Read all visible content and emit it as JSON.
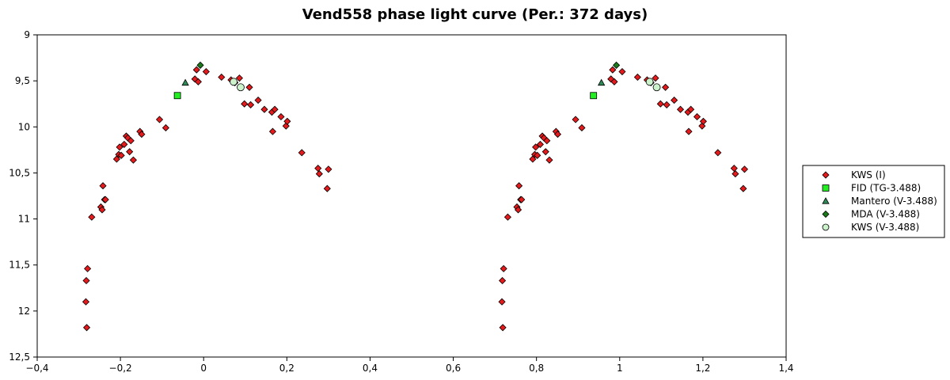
{
  "chart_data": {
    "type": "scatter",
    "title": "Vend558 phase light curve (Per.: 372 days)",
    "xlabel": "",
    "ylabel": "",
    "xlim": [
      -0.4,
      1.4
    ],
    "ylim": [
      12.5,
      9
    ],
    "y_inverted": true,
    "grid": false,
    "legend_position": "right",
    "x_ticks": [
      -0.4,
      -0.2,
      0,
      0.2,
      0.4,
      0.6,
      0.8,
      1,
      1.2,
      1.4
    ],
    "x_tick_labels": [
      "−0,4",
      "−0,2",
      "0",
      "0,2",
      "0,4",
      "0,6",
      "0,8",
      "1",
      "1,2",
      "1,4"
    ],
    "y_ticks": [
      9,
      9.5,
      10,
      10.5,
      11,
      11.5,
      12,
      12.5
    ],
    "y_tick_labels": [
      "9",
      "9,5",
      "10",
      "10,5",
      "11",
      "11,5",
      "12",
      "12,5"
    ],
    "series": [
      {
        "name": "KWS (I)",
        "marker": "diamond",
        "color": "#e41a1c",
        "x": [
          -0.283,
          -0.282,
          -0.281,
          -0.279,
          -0.269,
          -0.247,
          -0.244,
          -0.242,
          -0.238,
          -0.236,
          -0.209,
          -0.204,
          -0.202,
          -0.198,
          -0.191,
          -0.186,
          -0.182,
          -0.178,
          -0.175,
          -0.169,
          -0.153,
          -0.149,
          -0.106,
          -0.091,
          -0.021,
          -0.017,
          -0.013,
          0.006,
          0.043,
          0.066,
          0.075,
          0.086,
          0.098,
          0.11,
          0.113,
          0.131,
          0.146,
          0.164,
          0.166,
          0.171,
          0.186,
          0.198,
          0.201,
          0.236,
          0.275,
          0.278,
          0.297,
          0.3,
          0.717,
          0.718,
          0.719,
          0.721,
          0.731,
          0.753,
          0.756,
          0.758,
          0.762,
          0.764,
          0.791,
          0.796,
          0.798,
          0.802,
          0.809,
          0.814,
          0.818,
          0.822,
          0.825,
          0.831,
          0.847,
          0.851,
          0.894,
          0.909,
          0.979,
          0.983,
          0.987,
          1.006,
          1.043,
          1.066,
          1.075,
          1.086,
          1.098,
          1.11,
          1.113,
          1.131,
          1.146,
          1.164,
          1.166,
          1.171,
          1.186,
          1.198,
          1.201,
          1.236,
          1.275,
          1.278,
          1.297,
          1.3
        ],
        "y": [
          11.9,
          11.67,
          12.18,
          11.54,
          10.98,
          10.87,
          10.9,
          10.64,
          10.79,
          10.79,
          10.35,
          10.3,
          10.22,
          10.31,
          10.19,
          10.1,
          10.12,
          10.27,
          10.15,
          10.36,
          10.05,
          10.08,
          9.92,
          10.01,
          9.48,
          9.38,
          9.51,
          9.4,
          9.46,
          9.49,
          9.52,
          9.47,
          9.75,
          9.57,
          9.76,
          9.71,
          9.81,
          9.84,
          10.05,
          9.81,
          9.89,
          9.99,
          9.94,
          10.28,
          10.45,
          10.51,
          10.67,
          10.46,
          11.9,
          11.67,
          12.18,
          11.54,
          10.98,
          10.87,
          10.9,
          10.64,
          10.79,
          10.79,
          10.35,
          10.3,
          10.22,
          10.31,
          10.19,
          10.1,
          10.12,
          10.27,
          10.15,
          10.36,
          10.05,
          10.08,
          9.92,
          10.01,
          9.48,
          9.38,
          9.51,
          9.4,
          9.46,
          9.49,
          9.52,
          9.47,
          9.75,
          9.57,
          9.76,
          9.71,
          9.81,
          9.84,
          10.05,
          9.81,
          9.89,
          9.99,
          9.94,
          10.28,
          10.45,
          10.51,
          10.67,
          10.46
        ]
      },
      {
        "name": "FID (TG-3.488)",
        "marker": "square",
        "color": "#22ee22",
        "x": [
          -0.063,
          0.937
        ],
        "y": [
          9.66,
          9.66
        ]
      },
      {
        "name": "Mantero (V-3.488)",
        "marker": "triangle",
        "color": "#2e8b57",
        "x": [
          -0.044,
          0.956
        ],
        "y": [
          9.52,
          9.52
        ]
      },
      {
        "name": "MDA (V-3.488)",
        "marker": "diamond",
        "color": "#1a7a1a",
        "x": [
          -0.008,
          0.992
        ],
        "y": [
          9.33,
          9.33
        ]
      },
      {
        "name": "KWS (V-3.488)",
        "marker": "circle",
        "color": "#ccf2cc",
        "x": [
          0.072,
          0.089,
          1.072,
          1.089
        ],
        "y": [
          9.51,
          9.57,
          9.51,
          9.57
        ]
      }
    ]
  }
}
